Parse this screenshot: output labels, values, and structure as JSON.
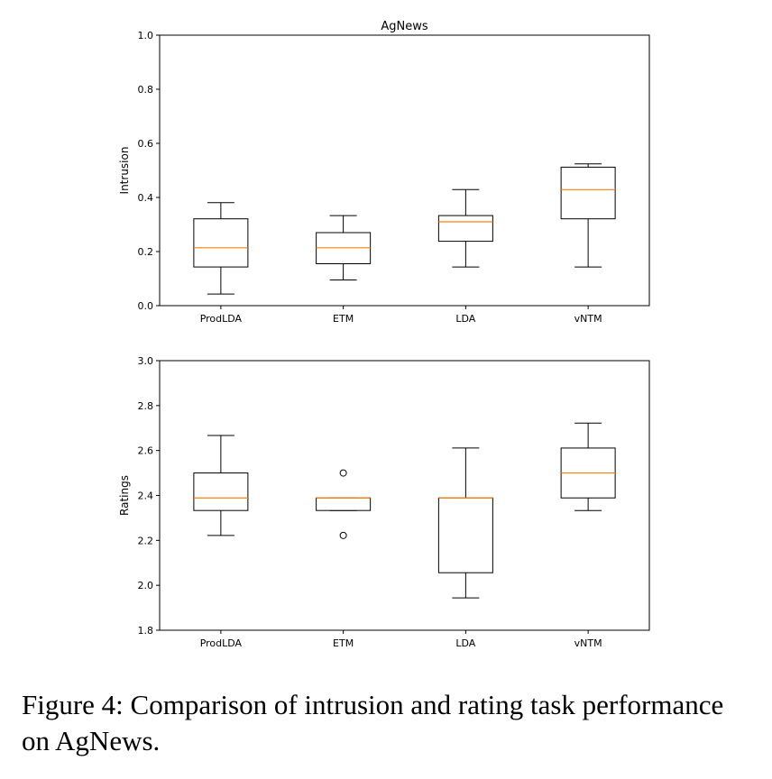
{
  "chart_data": [
    {
      "type": "boxplot",
      "title": "AgNews",
      "xlabel": "",
      "ylabel": "Intrusion",
      "ylim": [
        0.0,
        1.0
      ],
      "yticks": [
        "0.0",
        "0.2",
        "0.4",
        "0.6",
        "0.8",
        "1.0"
      ],
      "ytick_values": [
        0.0,
        0.2,
        0.4,
        0.6,
        0.8,
        1.0
      ],
      "categories": [
        "ProdLDA",
        "ETM",
        "LDA",
        "vNTM"
      ],
      "boxes": [
        {
          "name": "ProdLDA",
          "whislo": 0.043,
          "q1": 0.143,
          "med": 0.214,
          "q3": 0.321,
          "whishi": 0.381,
          "fliers": []
        },
        {
          "name": "ETM",
          "whislo": 0.095,
          "q1": 0.155,
          "med": 0.214,
          "q3": 0.27,
          "whishi": 0.333,
          "fliers": []
        },
        {
          "name": "LDA",
          "whislo": 0.143,
          "q1": 0.238,
          "med": 0.31,
          "q3": 0.333,
          "whishi": 0.429,
          "fliers": []
        },
        {
          "name": "vNTM",
          "whislo": 0.143,
          "q1": 0.321,
          "med": 0.429,
          "q3": 0.512,
          "whishi": 0.524,
          "fliers": []
        }
      ],
      "grid": false
    },
    {
      "type": "boxplot",
      "title": "",
      "xlabel": "",
      "ylabel": "Ratings",
      "ylim": [
        1.8,
        3.0
      ],
      "yticks": [
        "1.8",
        "2.0",
        "2.2",
        "2.4",
        "2.6",
        "2.8",
        "3.0"
      ],
      "ytick_values": [
        1.8,
        2.0,
        2.2,
        2.4,
        2.6,
        2.8,
        3.0
      ],
      "categories": [
        "ProdLDA",
        "ETM",
        "LDA",
        "vNTM"
      ],
      "boxes": [
        {
          "name": "ProdLDA",
          "whislo": 2.222,
          "q1": 2.333,
          "med": 2.389,
          "q3": 2.5,
          "whishi": 2.667,
          "fliers": []
        },
        {
          "name": "ETM",
          "whislo": 2.333,
          "q1": 2.333,
          "med": 2.389,
          "q3": 2.389,
          "whishi": 2.389,
          "fliers": [
            2.5,
            2.222
          ]
        },
        {
          "name": "LDA",
          "whislo": 1.944,
          "q1": 2.056,
          "med": 2.389,
          "q3": 2.389,
          "whishi": 2.611,
          "fliers": []
        },
        {
          "name": "vNTM",
          "whislo": 2.333,
          "q1": 2.389,
          "med": 2.5,
          "q3": 2.611,
          "whishi": 2.722,
          "fliers": []
        }
      ],
      "grid": false
    }
  ],
  "colors": {
    "box": "#000000",
    "median": "#ff7f0e",
    "background": "#ffffff"
  },
  "caption": "Figure 4: Comparison of intrusion and rating task performance on AgNews."
}
